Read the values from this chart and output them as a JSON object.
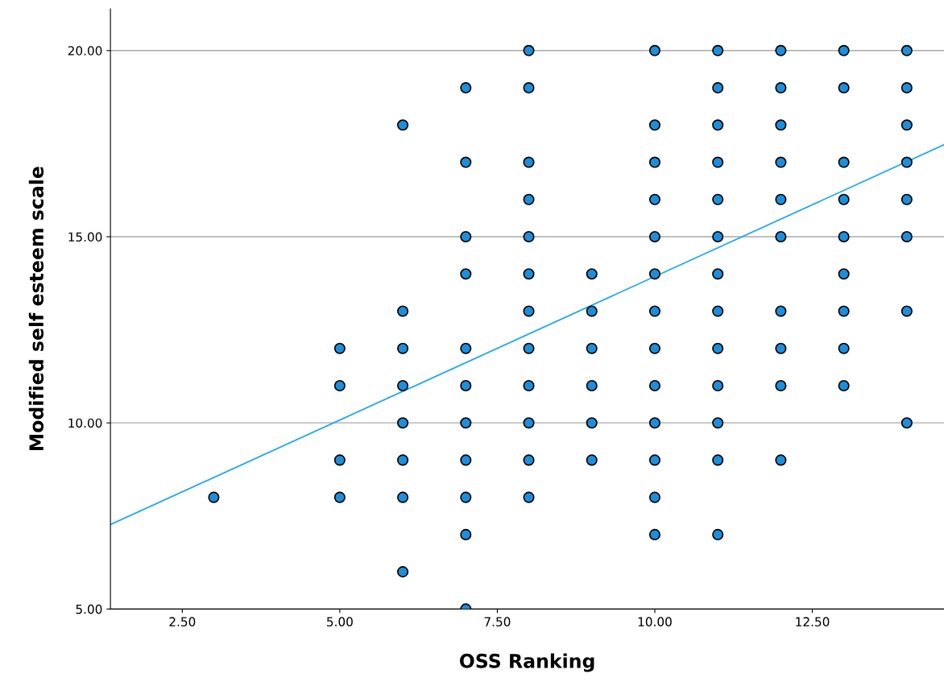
{
  "chart_data": {
    "type": "scatter",
    "xlabel": "OSS Ranking",
    "ylabel": "Modified self esteem scale",
    "xlim": [
      1.36,
      14.59
    ],
    "ylim": [
      5,
      21.12
    ],
    "xticks": [
      {
        "value": 2.5,
        "label": "2.50"
      },
      {
        "value": 5,
        "label": "5.00"
      },
      {
        "value": 7.5,
        "label": "7.50"
      },
      {
        "value": 10,
        "label": "10.00"
      },
      {
        "value": 12.5,
        "label": "12.50"
      }
    ],
    "yticks": [
      {
        "value": 5,
        "label": "5.00"
      },
      {
        "value": 10,
        "label": "10.00"
      },
      {
        "value": 15,
        "label": "15.00"
      },
      {
        "value": 20,
        "label": "20.00"
      }
    ],
    "grid": "y",
    "series": [
      {
        "color": "#1c8fdc",
        "marker": "circle",
        "x": [
          3,
          5,
          5,
          5,
          5,
          6,
          6,
          6,
          6,
          6,
          6,
          6,
          6,
          7,
          7,
          7,
          7,
          7,
          7,
          7,
          7,
          7,
          7,
          7,
          8,
          8,
          8,
          8,
          8,
          8,
          8,
          8,
          8,
          8,
          8,
          8,
          9,
          9,
          9,
          9,
          9,
          9,
          10,
          10,
          10,
          10,
          10,
          10,
          10,
          10,
          10,
          10,
          10,
          10,
          10,
          11,
          11,
          11,
          11,
          11,
          11,
          11,
          11,
          11,
          11,
          11,
          11,
          11,
          12,
          12,
          12,
          12,
          12,
          12,
          12,
          12,
          12,
          12,
          13,
          13,
          13,
          13,
          13,
          13,
          13,
          13,
          13,
          14,
          14,
          14,
          14,
          14,
          14,
          14,
          14
        ],
        "values": [
          8,
          12,
          11,
          9,
          8,
          18,
          13,
          12,
          11,
          10,
          9,
          8,
          6,
          19,
          17,
          15,
          14,
          12,
          11,
          10,
          9,
          8,
          7,
          5,
          20,
          19,
          17,
          16,
          15,
          14,
          13,
          12,
          11,
          10,
          9,
          8,
          14,
          13,
          12,
          11,
          10,
          9,
          20,
          18,
          17,
          16,
          15,
          14,
          13,
          12,
          11,
          10,
          9,
          8,
          7,
          20,
          19,
          18,
          17,
          16,
          15,
          14,
          13,
          12,
          11,
          10,
          9,
          7,
          20,
          19,
          18,
          17,
          16,
          15,
          13,
          12,
          11,
          9,
          20,
          19,
          17,
          16,
          15,
          14,
          13,
          12,
          11,
          20,
          19,
          18,
          17,
          16,
          15,
          13,
          10
        ]
      },
      {
        "type": "line",
        "marker": "none",
        "color": "#1ea8ec",
        "x": [
          1.36,
          14.59
        ],
        "values": [
          7.27,
          17.47
        ]
      }
    ]
  }
}
